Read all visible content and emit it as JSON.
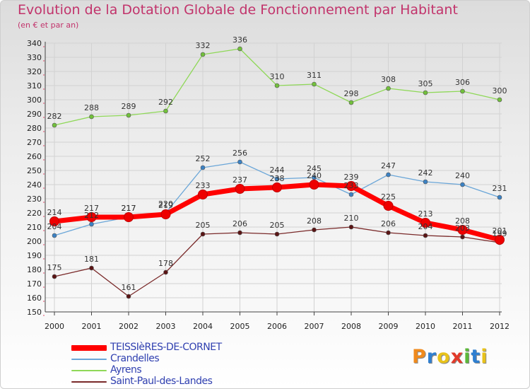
{
  "header": {
    "title": "Evolution de la Dotation Globale de Fonctionnement par Habitant",
    "subtitle": "(en € et par an)"
  },
  "brand": {
    "letters": [
      "P",
      "r",
      "o",
      "x",
      "i",
      "t",
      "i"
    ],
    "colors": [
      "#f08a1c",
      "#2f7fd0",
      "#e8c21a",
      "#e23a2a",
      "#5cb83a",
      "#2f7fd0",
      "#e8c21a"
    ]
  },
  "chart_data": {
    "type": "line",
    "title": "Evolution de la Dotation Globale de Fonctionnement par Habitant",
    "subtitle": "(en € et par an)",
    "xlabel": "",
    "ylabel": "",
    "categories": [
      "2000",
      "2001",
      "2002",
      "2003",
      "2004",
      "2005",
      "2006",
      "2007",
      "2008",
      "2009",
      "2010",
      "2011",
      "2012"
    ],
    "ylim": [
      150,
      340
    ],
    "yticks": [
      150,
      160,
      170,
      180,
      190,
      200,
      210,
      220,
      230,
      240,
      250,
      260,
      270,
      280,
      290,
      300,
      310,
      320,
      330,
      340
    ],
    "grid": true,
    "legend_position": "bottom-left",
    "series": [
      {
        "name": "Ayrens",
        "color": "#8fd858",
        "marker": "#72c03c",
        "values": [
          282,
          288,
          289,
          292,
          332,
          336,
          310,
          311,
          298,
          308,
          305,
          306,
          300
        ],
        "labels": [
          "282",
          "288",
          "289",
          "292",
          "332",
          "336",
          "310",
          "311",
          "298",
          "308",
          "305",
          "306",
          "300"
        ]
      },
      {
        "name": "Crandelles",
        "color": "#6aa6d8",
        "marker": "#3c82c4",
        "values": [
          204,
          212,
          217,
          220,
          252,
          256,
          244,
          245,
          233,
          247,
          242,
          240,
          231
        ],
        "labels": [
          "204",
          "212",
          "217",
          "220",
          "252",
          "256",
          "244",
          "245",
          "233",
          "247",
          "242",
          "240",
          "231"
        ]
      },
      {
        "name": "Saint-Paul-des-Landes",
        "color": "#7a2a2a",
        "marker": "#5a1414",
        "values": [
          175,
          181,
          161,
          178,
          205,
          206,
          205,
          208,
          210,
          206,
          204,
          203,
          199
        ],
        "labels": [
          "175",
          "181",
          "161",
          "178",
          "205",
          "206",
          "205",
          "208",
          "210",
          "206",
          "204",
          "203",
          "199"
        ]
      },
      {
        "name": "TEISSIèRES-DE-CORNET",
        "color": "#ff0000",
        "marker": "#ee0000",
        "values": [
          214,
          217,
          217,
          219,
          233,
          237,
          238,
          240,
          239,
          225,
          213,
          208,
          201
        ],
        "labels": [
          "214",
          "217",
          "217",
          "219",
          "233",
          "237",
          "238",
          "240",
          "239",
          "225",
          "213",
          "208",
          "201"
        ]
      }
    ],
    "legend": [
      {
        "name": "TEISSIèRES-DE-CORNET",
        "color": "#ff0000",
        "weight": "thick"
      },
      {
        "name": "Crandelles",
        "color": "#6aa6d8",
        "weight": "thin"
      },
      {
        "name": "Ayrens",
        "color": "#8fd858",
        "weight": "thin"
      },
      {
        "name": "Saint-Paul-des-Landes",
        "color": "#7a2a2a",
        "weight": "thin"
      }
    ]
  }
}
